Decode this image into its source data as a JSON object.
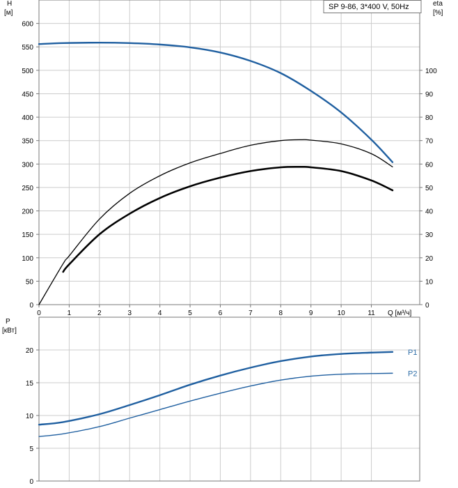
{
  "legend": {
    "text": "SP 9-86, 3*400 V, 50Hz"
  },
  "colors": {
    "blue": "#1f5fa0",
    "black": "#000000",
    "grid": "#cccccc",
    "frame": "#777777",
    "label_blue": "#2e6ea8"
  },
  "chart_data": [
    {
      "type": "line",
      "title": "",
      "ylabel": "H",
      "yunit": "[м]",
      "y2label": "eta",
      "y2unit": "[%]",
      "xlabel": "Q [м³/ч]",
      "xlim": [
        0,
        12.6
      ],
      "ylim": [
        0,
        650
      ],
      "y2lim": [
        0,
        130
      ],
      "xticks": [
        0,
        1,
        2,
        3,
        4,
        5,
        6,
        7,
        8,
        9,
        10,
        11
      ],
      "yticks": [
        0,
        50,
        100,
        150,
        200,
        250,
        300,
        350,
        400,
        450,
        500,
        550,
        600
      ],
      "y2ticks": [
        0,
        10,
        20,
        30,
        40,
        50,
        60,
        70,
        80,
        90,
        100
      ],
      "grid": true,
      "legend_position": "top-right",
      "series": [
        {
          "name": "",
          "axis": "left",
          "color": "#1f5fa0",
          "x": [
            0,
            0.8,
            2,
            3,
            4,
            5,
            6,
            7,
            8,
            9,
            10,
            11,
            11.7
          ],
          "y": [
            556,
            558,
            559,
            558,
            555,
            549,
            538,
            520,
            494,
            456,
            410,
            352,
            304
          ]
        },
        {
          "name": "",
          "axis": "right",
          "color": "#000000",
          "x": [
            0,
            0.8,
            1,
            2,
            3,
            4,
            5,
            6,
            7,
            8,
            8.7,
            9,
            10,
            11,
            11.7
          ],
          "y": [
            0,
            17.5,
            20.8,
            36.5,
            47.5,
            55,
            60.5,
            64.5,
            68,
            70,
            70.4,
            70.2,
            68.6,
            64.4,
            58.8
          ]
        },
        {
          "name": "",
          "axis": "right",
          "color": "#000000",
          "x": [
            0.8,
            1,
            2,
            3,
            4,
            5,
            6,
            7,
            8,
            8.7,
            9,
            10,
            11,
            11.7
          ],
          "y": [
            14,
            17.2,
            30,
            38.8,
            45.5,
            50.5,
            54.2,
            57,
            58.6,
            58.8,
            58.6,
            57,
            53,
            48.8
          ]
        }
      ]
    },
    {
      "type": "line",
      "title": "",
      "ylabel": "P",
      "yunit": "[кВт]",
      "xlim": [
        0,
        12.6
      ],
      "ylim": [
        0,
        25
      ],
      "yticks": [
        0,
        5,
        10,
        15,
        20
      ],
      "grid": true,
      "series": [
        {
          "name": "P1",
          "color": "#1f5fa0",
          "x": [
            0,
            0.8,
            2,
            3,
            4,
            5,
            6,
            7,
            8,
            9,
            10,
            11,
            11.7
          ],
          "y": [
            8.6,
            9.0,
            10.2,
            11.6,
            13.1,
            14.7,
            16.1,
            17.3,
            18.3,
            19.0,
            19.4,
            19.6,
            19.7
          ]
        },
        {
          "name": "P2",
          "color": "#1f5fa0",
          "x": [
            0,
            0.8,
            2,
            3,
            4,
            5,
            6,
            7,
            8,
            9,
            10,
            11,
            11.7
          ],
          "y": [
            6.8,
            7.2,
            8.3,
            9.6,
            10.9,
            12.2,
            13.4,
            14.5,
            15.4,
            16.0,
            16.3,
            16.4,
            16.45
          ]
        }
      ]
    }
  ]
}
